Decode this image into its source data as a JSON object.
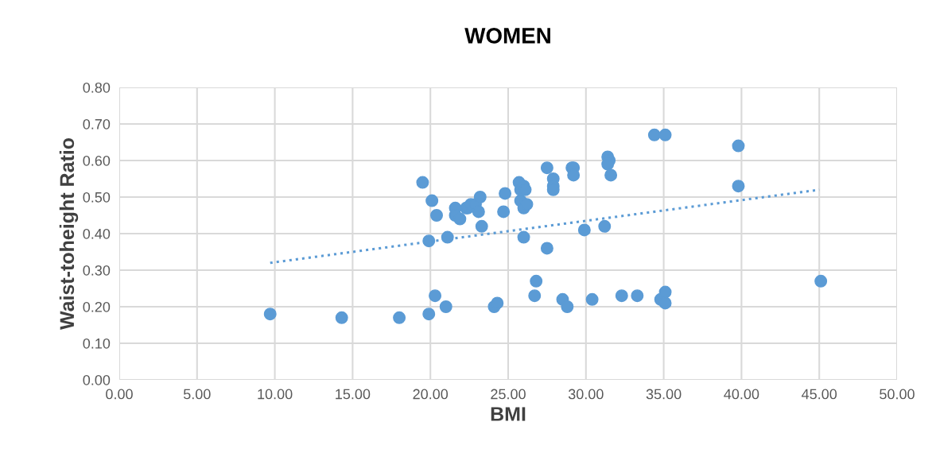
{
  "chart_data": {
    "type": "scatter",
    "title": "WOMEN",
    "xlabel": "BMI",
    "ylabel": "Waist-toheight Ratio",
    "xlim": [
      0,
      50
    ],
    "ylim": [
      0,
      0.8
    ],
    "xticks": [
      {
        "value": 0,
        "label": "0.00"
      },
      {
        "value": 5,
        "label": "5.00"
      },
      {
        "value": 10,
        "label": "10.00"
      },
      {
        "value": 15,
        "label": "15.00"
      },
      {
        "value": 20,
        "label": "20.00"
      },
      {
        "value": 25,
        "label": "25.00"
      },
      {
        "value": 30,
        "label": "30.00"
      },
      {
        "value": 35,
        "label": "35.00"
      },
      {
        "value": 40,
        "label": "40.00"
      },
      {
        "value": 45,
        "label": "45.00"
      },
      {
        "value": 50,
        "label": "50.00"
      }
    ],
    "yticks": [
      {
        "value": 0,
        "label": "0.00"
      },
      {
        "value": 0.1,
        "label": "0.10"
      },
      {
        "value": 0.2,
        "label": "0.20"
      },
      {
        "value": 0.3,
        "label": "0.30"
      },
      {
        "value": 0.4,
        "label": "0.40"
      },
      {
        "value": 0.5,
        "label": "0.50"
      },
      {
        "value": 0.6,
        "label": "0.60"
      },
      {
        "value": 0.7,
        "label": "0.70"
      },
      {
        "value": 0.8,
        "label": "0.80"
      }
    ],
    "grid": true,
    "legend": false,
    "series": [
      {
        "color": "#5b9bd5",
        "marker": "circle",
        "x": [
          9.7,
          14.3,
          18.0,
          19.5,
          19.9,
          19.9,
          20.1,
          20.3,
          20.4,
          21.0,
          21.1,
          21.6,
          21.6,
          21.9,
          22.3,
          22.4,
          22.6,
          22.9,
          23.2,
          23.1,
          23.3,
          24.1,
          24.3,
          24.8,
          24.7,
          25.7,
          25.8,
          26.0,
          25.8,
          26.0,
          26.1,
          26.2,
          26.0,
          26.7,
          26.8,
          27.5,
          27.5,
          27.9,
          27.9,
          27.9,
          28.5,
          28.8,
          29.1,
          29.2,
          29.2,
          29.9,
          30.4,
          31.2,
          31.4,
          31.5,
          31.4,
          31.6,
          32.3,
          33.3,
          34.4,
          35.1,
          34.8,
          35.1,
          35.1,
          39.8,
          39.8,
          45.1
        ],
        "values": [
          0.18,
          0.17,
          0.17,
          0.54,
          0.38,
          0.18,
          0.49,
          0.23,
          0.45,
          0.2,
          0.39,
          0.47,
          0.45,
          0.44,
          0.47,
          0.47,
          0.48,
          0.48,
          0.5,
          0.46,
          0.42,
          0.2,
          0.21,
          0.51,
          0.46,
          0.54,
          0.52,
          0.53,
          0.49,
          0.47,
          0.52,
          0.48,
          0.39,
          0.23,
          0.27,
          0.58,
          0.36,
          0.55,
          0.53,
          0.52,
          0.22,
          0.2,
          0.58,
          0.58,
          0.56,
          0.41,
          0.22,
          0.42,
          0.61,
          0.6,
          0.59,
          0.56,
          0.23,
          0.23,
          0.67,
          0.67,
          0.22,
          0.24,
          0.21,
          0.64,
          0.53,
          0.27
        ]
      },
      {
        "type": "line",
        "color": "#5b9bd5",
        "marker": "none",
        "line_style": "dotted",
        "x": [
          9.7,
          45.0
        ],
        "values": [
          0.32,
          0.52
        ]
      }
    ]
  }
}
